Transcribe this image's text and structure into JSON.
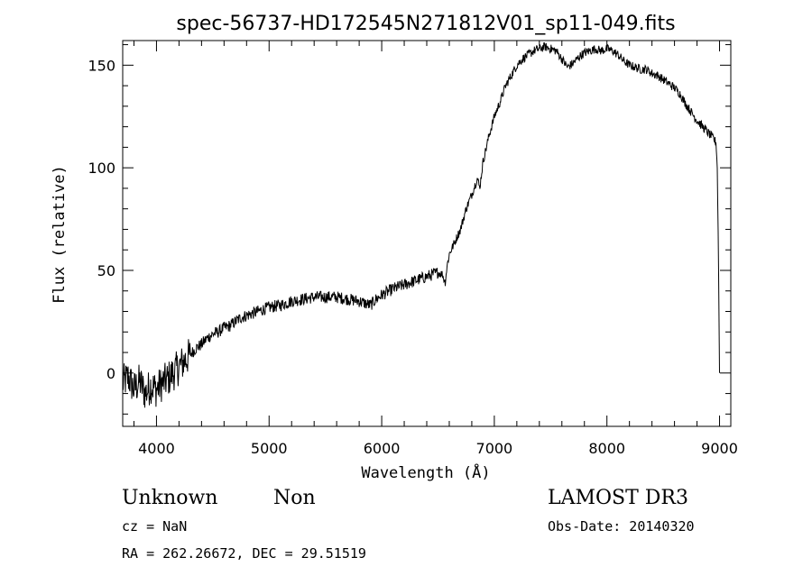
{
  "chart_data": {
    "type": "line",
    "title": "spec-56737-HD172545N271812V01_sp11-049.fits",
    "xlabel": "Wavelength (Å)",
    "ylabel": "Flux (relative)",
    "xlim": [
      3700,
      9100
    ],
    "ylim": [
      -26,
      162
    ],
    "x_ticks": [
      4000,
      5000,
      6000,
      7000,
      8000,
      9000
    ],
    "y_ticks": [
      0,
      50,
      100,
      150
    ],
    "grid": false,
    "series": [
      {
        "x": [
          3700,
          3750,
          3800,
          3850,
          3900,
          3950,
          4000,
          4050,
          4100,
          4150,
          4200,
          4250,
          4300,
          4350,
          4400,
          4450,
          4500,
          4550,
          4600,
          4650,
          4700,
          4750,
          4800,
          4850,
          4900,
          4950,
          5000,
          5100,
          5200,
          5300,
          5400,
          5500,
          5600,
          5700,
          5800,
          5850,
          5900,
          5950,
          6000,
          6100,
          6200,
          6300,
          6400,
          6500,
          6540,
          6563,
          6580,
          6600,
          6650,
          6700,
          6750,
          6800,
          6850,
          6870,
          6900,
          6950,
          7000,
          7050,
          7100,
          7150,
          7200,
          7250,
          7300,
          7350,
          7400,
          7450,
          7500,
          7550,
          7600,
          7650,
          7700,
          7750,
          7800,
          7850,
          7900,
          7950,
          8000,
          8050,
          8100,
          8150,
          8200,
          8250,
          8300,
          8350,
          8400,
          8450,
          8500,
          8550,
          8600,
          8650,
          8700,
          8750,
          8800,
          8850,
          8900,
          8950,
          8970,
          8980,
          8990,
          9000
        ],
        "values": [
          -5,
          -2,
          -8,
          -4,
          -10,
          -6,
          -8,
          -5,
          -3,
          0,
          3,
          6,
          9,
          12,
          14,
          17,
          19,
          20,
          22,
          23,
          25,
          27,
          28,
          29,
          30,
          31,
          32,
          33,
          35,
          36,
          37,
          37,
          37,
          36,
          35,
          34,
          33,
          36,
          38,
          41,
          43,
          45,
          47,
          49,
          48,
          44,
          52,
          58,
          64,
          70,
          80,
          87,
          95,
          90,
          103,
          115,
          125,
          132,
          140,
          145,
          150,
          153,
          155,
          157,
          158,
          159,
          158,
          157,
          153,
          149,
          151,
          154,
          156,
          157,
          158,
          157,
          158,
          157,
          155,
          152,
          150,
          149,
          148,
          148,
          146,
          145,
          143,
          141,
          139,
          136,
          131,
          127,
          123,
          120,
          117,
          114,
          112,
          100,
          60,
          0
        ]
      }
    ]
  },
  "info": {
    "object_class": "Unknown",
    "subclass": "Non",
    "survey": "LAMOST DR3",
    "redshift": "cz = NaN",
    "obs_date": "Obs-Date: 20140320",
    "coords": "RA = 262.26672, DEC =  29.51519"
  }
}
